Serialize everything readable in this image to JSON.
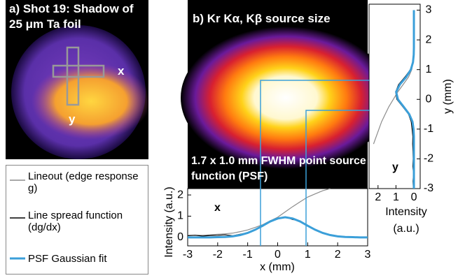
{
  "panel_a": {
    "title": "a) Shot 19: Shadow of 25 μm Ta foil",
    "x_label": "x",
    "y_label": "y"
  },
  "panel_b": {
    "title": "b) Kr Kα, Kβ source size",
    "annotation": "1.7 x 1.0 mm FWHM point source function (PSF)"
  },
  "chart_data": [
    {
      "type": "line",
      "annotation": "x",
      "xlabel": "x (mm)",
      "ylabel": "Intensity (a.u.)",
      "x": [
        -3,
        -2.75,
        -2.5,
        -2.25,
        -2,
        -1.75,
        -1.5,
        -1.25,
        -1,
        -0.75,
        -0.5,
        -0.25,
        0,
        0.25,
        0.5,
        0.75,
        1,
        1.25,
        1.5,
        1.75,
        2,
        2.25,
        2.5,
        2.75,
        3
      ],
      "xlim": [
        -3,
        3
      ],
      "xticks": [
        -3,
        -2,
        -1,
        0,
        1,
        2,
        3
      ],
      "ylim": [
        -0.4,
        2.3
      ],
      "yticks": [
        0,
        1,
        2
      ],
      "series": [
        {
          "name": "Lineout (edge response g)",
          "color": "#8c8c8c",
          "values": [
            0.1,
            0.1,
            0.1,
            0.12,
            0.15,
            0.17,
            0.2,
            0.27,
            0.35,
            0.47,
            0.6,
            0.78,
            0.95,
            1.2,
            1.45,
            1.68,
            1.9,
            2.05,
            2.2,
            2.3,
            null,
            null,
            null,
            null,
            null
          ]
        },
        {
          "name": "Line spread function (dg/dx)",
          "color": "#000000",
          "values": [
            0.08,
            0.1,
            0.06,
            0.09,
            0.1,
            0.12,
            0.08,
            0.15,
            0.22,
            0.38,
            0.52,
            0.78,
            0.86,
            0.97,
            0.84,
            0.78,
            0.53,
            0.38,
            0.2,
            0.12,
            null,
            null,
            null,
            null,
            null
          ]
        },
        {
          "name": "PSF Gaussian fit",
          "color": "#3b9fd9",
          "values": [
            0,
            0,
            0,
            0,
            0.01,
            0.02,
            0.05,
            0.11,
            0.21,
            0.36,
            0.55,
            0.75,
            0.89,
            0.95,
            0.89,
            0.75,
            0.55,
            0.36,
            0.21,
            0.11,
            0.05,
            0.02,
            0.01,
            0,
            0
          ]
        }
      ]
    },
    {
      "type": "line",
      "value_axis": "x",
      "annotation": "y",
      "xlabel": "Intensity (a.u.)",
      "ylabel": "y (mm)",
      "y": [
        -3,
        -2.75,
        -2.5,
        -2.25,
        -2,
        -1.75,
        -1.5,
        -1.25,
        -1,
        -0.75,
        -0.5,
        -0.25,
        0,
        0.25,
        0.5,
        0.75,
        1,
        1.25,
        1.5,
        1.75,
        2,
        2.25,
        2.5,
        2.75,
        3
      ],
      "xlim": [
        2.5,
        -0.35
      ],
      "xticks": [
        2,
        1,
        0
      ],
      "ylim": [
        -3,
        3.2
      ],
      "yticks": [
        -3,
        -2,
        -1,
        0,
        1,
        2,
        3
      ],
      "series": [
        {
          "color": "#8c8c8c",
          "values": [
            null,
            null,
            null,
            null,
            null,
            null,
            2.25,
            2.1,
            1.95,
            1.8,
            1.6,
            1.4,
            1.15,
            0.9,
            0.6,
            0.3,
            0.12,
            0.05,
            0.02,
            0,
            0,
            0,
            0,
            0,
            0
          ]
        },
        {
          "color": "#000000",
          "values": [
            0.03,
            0.05,
            0.02,
            0.06,
            0.04,
            0.05,
            0.07,
            0.06,
            0.1,
            0.15,
            0.3,
            0.62,
            0.95,
            1.02,
            0.85,
            0.5,
            0.2,
            0.07,
            0.02,
            null,
            null,
            null,
            null,
            null,
            null
          ]
        },
        {
          "color": "#3b9fd9",
          "values": [
            0,
            0,
            0,
            0,
            0,
            0,
            0,
            0,
            0.02,
            0.08,
            0.26,
            0.57,
            0.89,
            0.99,
            0.78,
            0.43,
            0.17,
            0.05,
            0.01,
            0,
            0,
            0,
            0,
            0,
            0
          ]
        }
      ]
    }
  ]
}
